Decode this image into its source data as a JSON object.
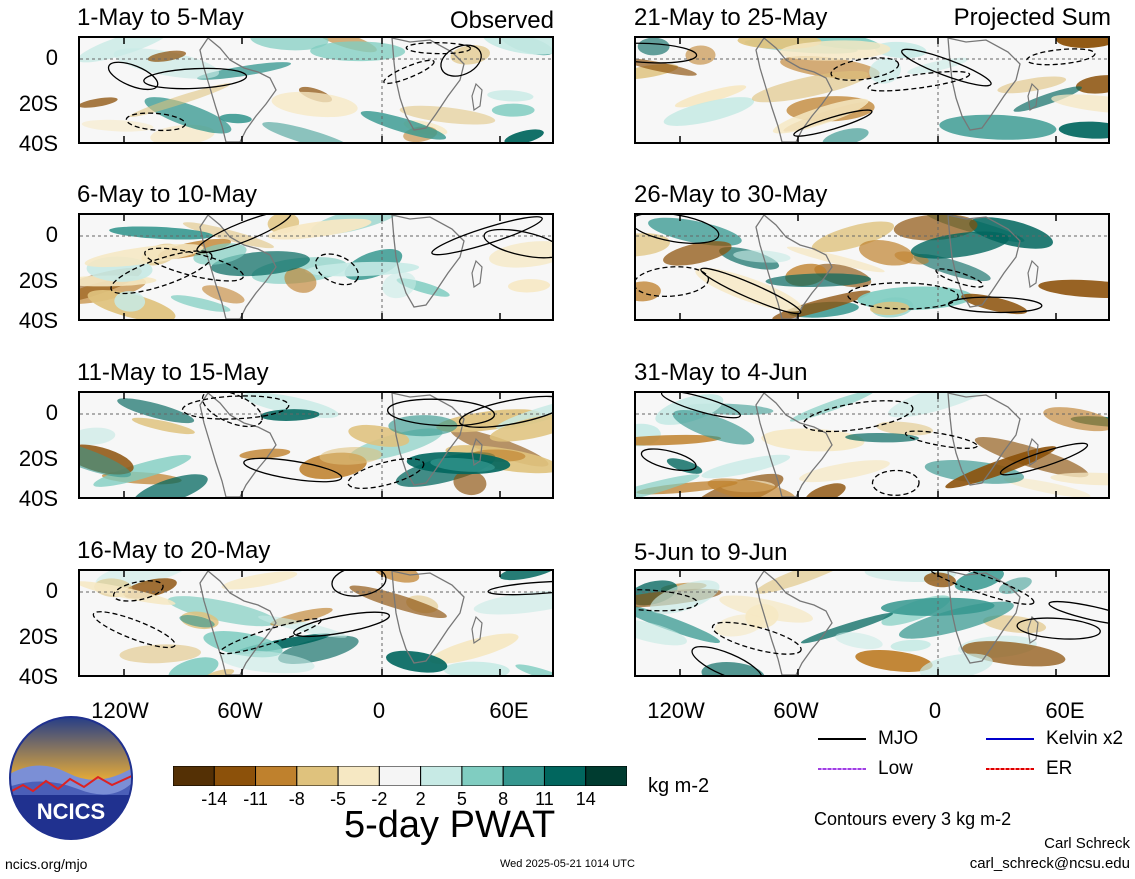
{
  "panels_observed": [
    {
      "title": "1-May to 5-May",
      "tag": "Observed"
    },
    {
      "title": "6-May to 10-May",
      "tag": ""
    },
    {
      "title": "11-May to 15-May",
      "tag": ""
    },
    {
      "title": "16-May to 20-May",
      "tag": ""
    }
  ],
  "panels_projected": [
    {
      "title": "21-May to 25-May",
      "tag": "Projected Sum"
    },
    {
      "title": "26-May to 30-May",
      "tag": ""
    },
    {
      "title": "31-May to 4-Jun",
      "tag": ""
    },
    {
      "title": "5-Jun to 9-Jun",
      "tag": ""
    }
  ],
  "axes": {
    "y_ticks": [
      "0",
      "20S",
      "40S"
    ],
    "x_ticks": [
      "120W",
      "60W",
      "0",
      "60E"
    ]
  },
  "colorbar": {
    "labels": [
      "-14",
      "-11",
      "-8",
      "-5",
      "-2",
      "2",
      "5",
      "8",
      "11",
      "14"
    ],
    "colors": [
      "#543005",
      "#8c510a",
      "#bf812d",
      "#dfc27d",
      "#f6e8c3",
      "#f5f5f5",
      "#c7eae5",
      "#80cdc1",
      "#35978f",
      "#01665e",
      "#003c30"
    ],
    "units": "kg m-2",
    "title": "5-day PWAT"
  },
  "legend": {
    "items": [
      {
        "label": "MJO",
        "color": "#000000"
      },
      {
        "label": "Kelvin x2",
        "color": "#0000cc"
      },
      {
        "label": "Low",
        "color": "#a040e0"
      },
      {
        "label": "ER",
        "color": "#dd0000"
      }
    ],
    "contour_note": "Contours every 3 kg m-2"
  },
  "logo": {
    "text": "NCICS"
  },
  "footer": {
    "url": "ncics.org/mjo",
    "timestamp": "Wed 2025-05-21 1014 UTC",
    "author": "Carl Schreck",
    "email": "carl_schreck@ncsu.edu"
  }
}
